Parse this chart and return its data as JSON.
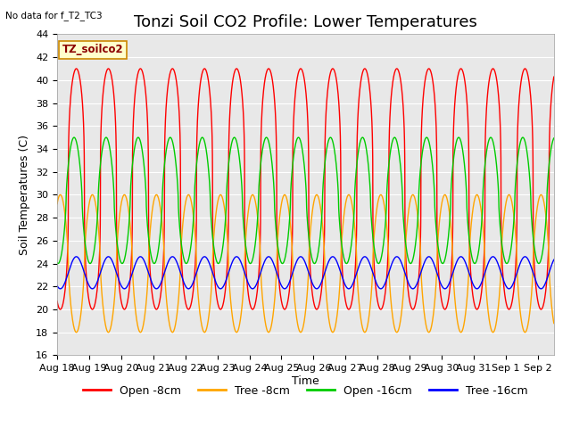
{
  "title": "Tonzi Soil CO2 Profile: Lower Temperatures",
  "ylabel": "Soil Temperatures (C)",
  "xlabel": "Time",
  "annotation_text": "No data for f_T2_TC3",
  "legend_box_label": "TZ_soilco2",
  "ylim": [
    16,
    44
  ],
  "yticks": [
    16,
    18,
    20,
    22,
    24,
    26,
    28,
    30,
    32,
    34,
    36,
    38,
    40,
    42,
    44
  ],
  "num_days": 15.5,
  "date_labels": [
    "Aug 18",
    "Aug 19",
    "Aug 20",
    "Aug 21",
    "Aug 22",
    "Aug 23",
    "Aug 24",
    "Aug 25",
    "Aug 26",
    "Aug 27",
    "Aug 28",
    "Aug 29",
    "Aug 30",
    "Aug 31",
    "Sep 1",
    "Sep 2"
  ],
  "lines": {
    "open_8cm": {
      "label": "Open -8cm",
      "color": "#ff0000"
    },
    "tree_8cm": {
      "label": "Tree -8cm",
      "color": "#ffa500"
    },
    "open_16cm": {
      "label": "Open -16cm",
      "color": "#00cc00"
    },
    "tree_16cm": {
      "label": "Tree -16cm",
      "color": "#0000ff"
    }
  },
  "plot_bg_color": "#e8e8e8",
  "fig_bg_color": "#ffffff",
  "grid_color": "#ffffff",
  "title_fontsize": 13,
  "legend_fontsize": 9,
  "tick_labelsize": 8,
  "open_8cm_baseline": 30.5,
  "open_8cm_amplitude": 10.5,
  "open_8cm_peak_sharpness": 3,
  "open_8cm_phase": 0.35,
  "tree_8cm_baseline": 24.0,
  "tree_8cm_amplitude": 6.0,
  "tree_8cm_phase": 0.85,
  "open_16cm_baseline": 29.5,
  "open_16cm_amplitude": 5.5,
  "open_16cm_phase": 0.28,
  "tree_16cm_baseline": 23.2,
  "tree_16cm_amplitude": 1.4,
  "tree_16cm_phase": 0.35
}
